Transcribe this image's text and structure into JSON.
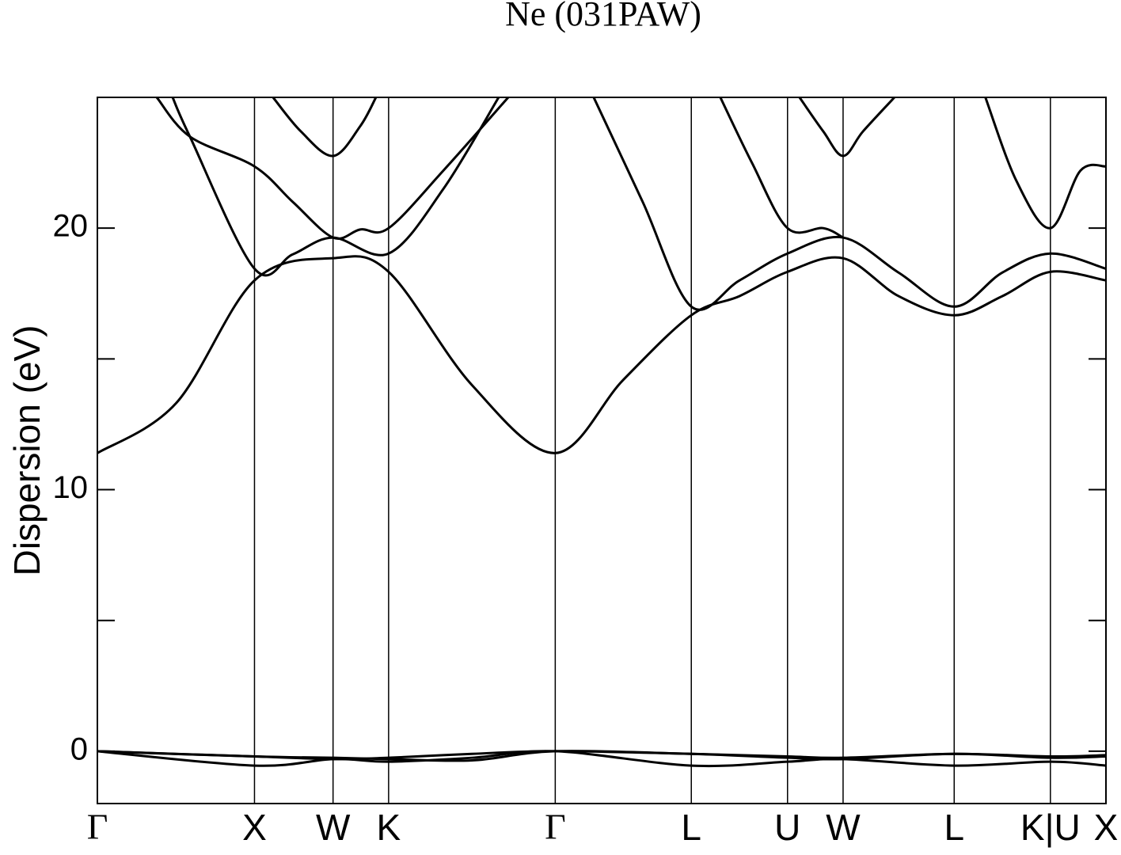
{
  "chart_data": {
    "type": "line",
    "title": "Ne (031PAW)",
    "ylabel": "Dispersion (eV)",
    "xlim": [
      0,
      6.4193
    ],
    "xticks": [
      {
        "value": 0,
        "label": "Γ"
      },
      {
        "value": 1,
        "label": "X"
      },
      {
        "value": 1.5,
        "label": "W"
      },
      {
        "value": 1.8536,
        "label": "K"
      },
      {
        "value": 2.9142,
        "label": "Γ"
      },
      {
        "value": 3.7802,
        "label": "L"
      },
      {
        "value": 4.3926,
        "label": "U"
      },
      {
        "value": 4.7462,
        "label": "W"
      },
      {
        "value": 5.4533,
        "label": "L"
      },
      {
        "value": 6.0657,
        "label": "K|U"
      },
      {
        "value": 6.4193,
        "label": "X"
      }
    ],
    "ylim": [
      -2,
      25
    ],
    "yticks": [
      0,
      10,
      20
    ],
    "yminor": [
      5,
      15
    ],
    "grid": true,
    "series": [
      {
        "color": "#000000",
        "x": [
          0,
          1,
          1.5,
          1.8536,
          2.3839,
          2.9142,
          3.7802,
          4.3926,
          4.7462,
          5.4533,
          6.0657,
          6.4193
        ],
        "values": [
          0,
          -0.55,
          -0.3,
          -0.4,
          -0.25,
          0,
          -0.55,
          -0.4,
          -0.3,
          -0.55,
          -0.4,
          -0.55
        ]
      },
      {
        "color": "#000000",
        "x": [
          0,
          1,
          1.5,
          1.8536,
          2.3839,
          2.9142,
          3.7802,
          4.3926,
          4.7462,
          5.4533,
          6.0657,
          6.4193
        ],
        "values": [
          0,
          -0.2,
          -0.3,
          -0.25,
          -0.1,
          0,
          -0.1,
          -0.25,
          -0.3,
          -0.1,
          -0.25,
          -0.2
        ]
      },
      {
        "color": "#000000",
        "x": [
          0,
          1,
          1.5,
          1.8536,
          2.3839,
          2.9142,
          3.7802,
          4.3926,
          4.7462,
          5.4533,
          6.0657,
          6.4193
        ],
        "values": [
          0,
          -0.2,
          -0.25,
          -0.3,
          -0.35,
          0,
          -0.1,
          -0.2,
          -0.25,
          -0.1,
          -0.2,
          -0.15
        ]
      },
      {
        "color": "#000000",
        "x": [
          0,
          0.5,
          1,
          1.5,
          1.8536,
          2.3839,
          2.9142,
          3.3472,
          3.7802,
          4.0864,
          4.3926,
          4.7462,
          5.0998,
          5.4533,
          5.7595,
          6.0657,
          6.4193
        ],
        "values": [
          11.4,
          13.3,
          18.0,
          18.85,
          18.33,
          14.0,
          11.4,
          14.2,
          16.67,
          17.4,
          18.33,
          18.85,
          17.4,
          16.67,
          17.4,
          18.33,
          18.0
        ]
      },
      {
        "color": "#000000",
        "x": [
          0.479,
          0.589,
          1,
          1.244,
          1.5,
          1.8536,
          2.202,
          2.554,
          null,
          3.159,
          3.471,
          3.7802,
          4.0864,
          4.3926,
          4.7462,
          5.0998,
          5.4533,
          5.7595,
          6.0657,
          6.4193
        ],
        "values": [
          25,
          23.5,
          18.45,
          19.0,
          19.64,
          19.03,
          21.5,
          25,
          null,
          25,
          21.0,
          17.0,
          18.0,
          19.03,
          19.64,
          18.3,
          17.0,
          18.3,
          19.03,
          18.45
        ]
      },
      {
        "color": "#000000",
        "x": [
          0.378,
          0.589,
          1,
          1.244,
          1.5,
          1.673,
          1.8536,
          2.202,
          2.615,
          null,
          3.965,
          4.166,
          4.3926,
          4.62,
          4.7462
        ],
        "values": [
          25,
          23.5,
          22.36,
          21.0,
          19.64,
          19.95,
          20.0,
          22.2,
          25,
          null,
          25,
          22.5,
          20.0,
          20.0,
          19.64
        ]
      },
      {
        "color": "#000000",
        "x": [
          1.118,
          1.295,
          1.5,
          1.673,
          1.773,
          null,
          4.469,
          4.62,
          4.7462,
          4.873,
          5.073
        ],
        "values": [
          25,
          23.7,
          22.76,
          23.9,
          25,
          null,
          25,
          23.7,
          22.76,
          23.7,
          25
        ]
      },
      {
        "color": "#000000",
        "x": [
          5.652,
          5.85,
          6.0657,
          6.257,
          6.4193
        ],
        "values": [
          25,
          21.8,
          20.0,
          22.2,
          22.36
        ]
      }
    ]
  }
}
